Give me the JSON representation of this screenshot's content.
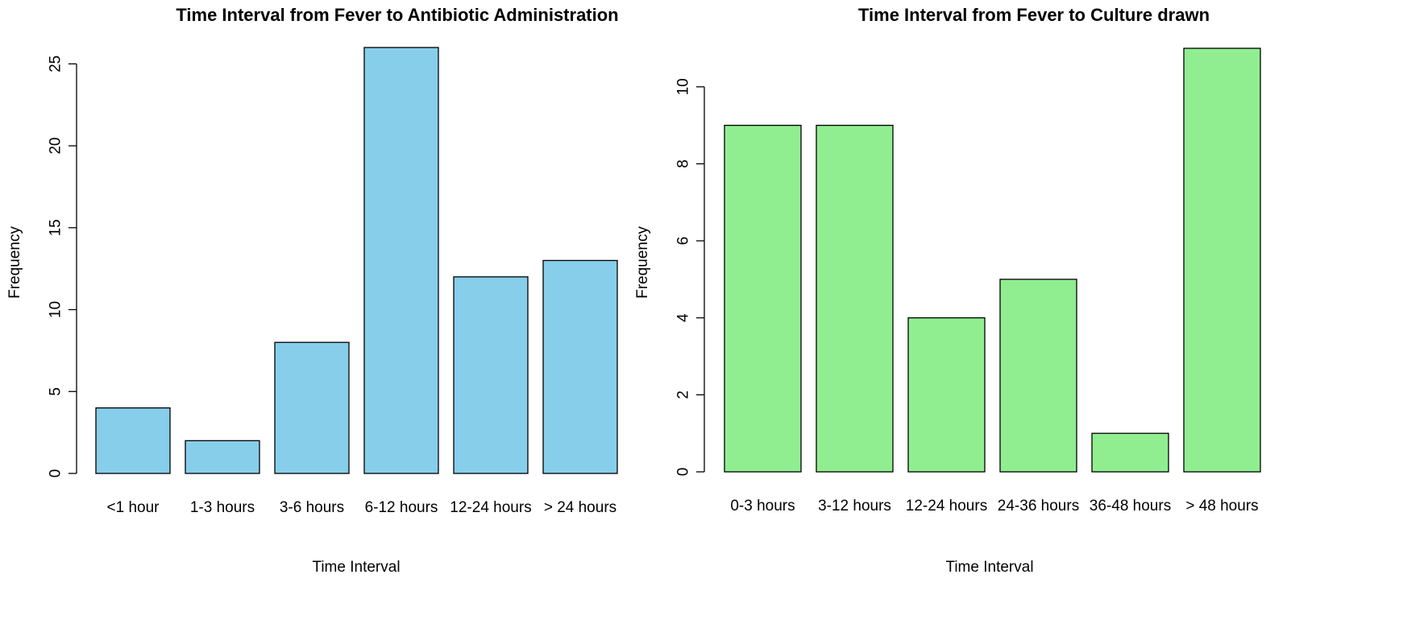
{
  "chart_data": [
    {
      "type": "bar",
      "title": "Time Interval from Fever to Antibiotic Administration",
      "xlabel": "Time Interval",
      "ylabel": "Frequency",
      "categories": [
        "<1 hour",
        "1-3 hours",
        "3-6 hours",
        "6-12 hours",
        "12-24 hours",
        "> 24 hours"
      ],
      "values": [
        4,
        2,
        8,
        26,
        12,
        13
      ],
      "yticks": [
        0,
        5,
        10,
        15,
        20,
        25
      ],
      "ylim": [
        0,
        26
      ],
      "color": "#87CEEB",
      "grid": false
    },
    {
      "type": "bar",
      "title": "Time Interval from Fever to Culture drawn",
      "xlabel": "Time Interval",
      "ylabel": "Frequency",
      "categories": [
        "0-3 hours",
        "3-12 hours",
        "12-24 hours",
        "24-36 hours",
        "36-48 hours",
        "> 48 hours"
      ],
      "values": [
        9,
        9,
        4,
        5,
        1,
        11
      ],
      "yticks": [
        0,
        2,
        4,
        6,
        8,
        10
      ],
      "ylim": [
        0,
        11
      ],
      "color": "#90EE90",
      "grid": false
    }
  ]
}
